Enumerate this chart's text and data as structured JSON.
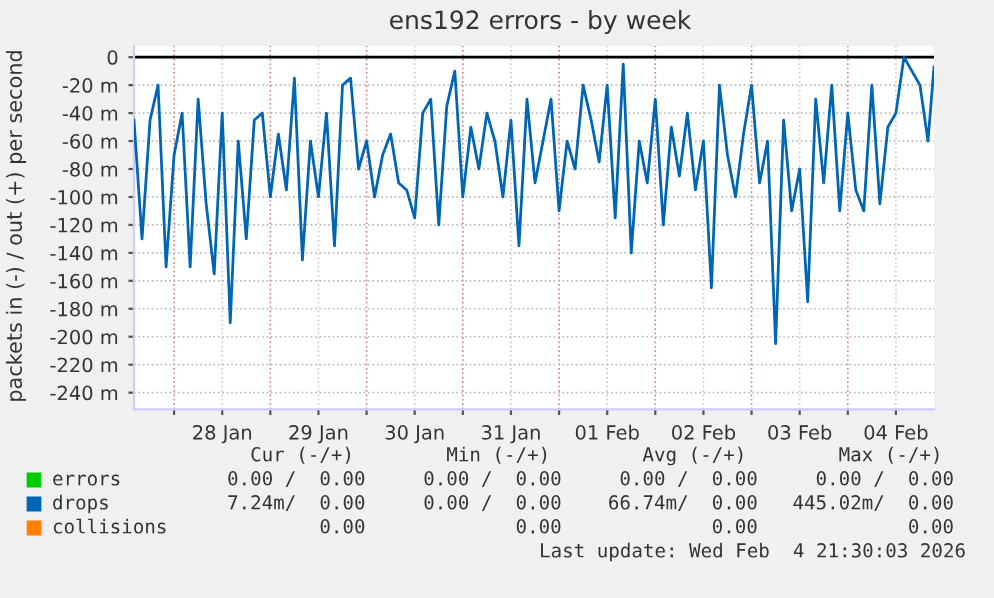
{
  "chart_data": {
    "type": "line",
    "title": "ens192 errors - by week",
    "ylabel": "packets in (-) / out (+) per second",
    "xlim": [
      "2026-01-27T14:00",
      "2026-02-04T21:30"
    ],
    "ylim": [
      -252,
      8
    ],
    "xticks": [
      {
        "value": "2026-01-28",
        "label": null
      },
      {
        "value": "2026-01-28T12:00",
        "label": "28 Jan"
      },
      {
        "value": "2026-01-29",
        "label": null
      },
      {
        "value": "2026-01-29T12:00",
        "label": "29 Jan"
      },
      {
        "value": "2026-01-30",
        "label": null
      },
      {
        "value": "2026-01-30T12:00",
        "label": "30 Jan"
      },
      {
        "value": "2026-01-31",
        "label": null
      },
      {
        "value": "2026-01-31T12:00",
        "label": "31 Jan"
      },
      {
        "value": "2026-02-01",
        "label": null
      },
      {
        "value": "2026-02-01T12:00",
        "label": "01 Feb"
      },
      {
        "value": "2026-02-02",
        "label": null
      },
      {
        "value": "2026-02-02T12:00",
        "label": "02 Feb"
      },
      {
        "value": "2026-02-03",
        "label": null
      },
      {
        "value": "2026-02-03T12:00",
        "label": "03 Feb"
      },
      {
        "value": "2026-02-04",
        "label": null
      },
      {
        "value": "2026-02-04T12:00",
        "label": "04 Feb"
      }
    ],
    "yticks": [
      0,
      {
        "value": -20,
        "label": "-20 m"
      },
      {
        "value": -40,
        "label": "-40 m"
      },
      {
        "value": -60,
        "label": "-60 m"
      },
      {
        "value": -80,
        "label": "-80 m"
      },
      {
        "value": -100,
        "label": "-100 m"
      },
      {
        "value": -120,
        "label": "-120 m"
      },
      {
        "value": -140,
        "label": "-140 m"
      },
      {
        "value": -160,
        "label": "-160 m"
      },
      {
        "value": -180,
        "label": "-180 m"
      },
      {
        "value": -200,
        "label": "-200 m"
      },
      {
        "value": -220,
        "label": "-220 m"
      },
      {
        "value": -240,
        "label": "-240 m"
      }
    ],
    "grid": true,
    "legend": "bottom left",
    "marker": "none",
    "line_style": "solid",
    "series": [
      {
        "name": "errors",
        "color": "#00cc00"
      },
      {
        "name": "drops",
        "color": "#0066b3",
        "x": [
          "2026-01-27T14:00",
          "2026-01-27T16:00",
          "2026-01-27T18:00",
          "2026-01-27T20:00",
          "2026-01-27T22:00",
          "2026-01-28T00:00",
          "2026-01-28T02:00",
          "2026-01-28T04:00",
          "2026-01-28T06:00",
          "2026-01-28T08:00",
          "2026-01-28T10:00",
          "2026-01-28T12:00",
          "2026-01-28T14:00",
          "2026-01-28T16:00",
          "2026-01-28T18:00",
          "2026-01-28T20:00",
          "2026-01-28T22:00",
          "2026-01-29T00:00",
          "2026-01-29T02:00",
          "2026-01-29T04:00",
          "2026-01-29T06:00",
          "2026-01-29T08:00",
          "2026-01-29T10:00",
          "2026-01-29T12:00",
          "2026-01-29T14:00",
          "2026-01-29T16:00",
          "2026-01-29T18:00",
          "2026-01-29T20:00",
          "2026-01-29T22:00",
          "2026-01-30T00:00",
          "2026-01-30T02:00",
          "2026-01-30T04:00",
          "2026-01-30T06:00",
          "2026-01-30T08:00",
          "2026-01-30T10:00",
          "2026-01-30T12:00",
          "2026-01-30T14:00",
          "2026-01-30T16:00",
          "2026-01-30T18:00",
          "2026-01-30T20:00",
          "2026-01-30T22:00",
          "2026-01-31T00:00",
          "2026-01-31T02:00",
          "2026-01-31T04:00",
          "2026-01-31T06:00",
          "2026-01-31T08:00",
          "2026-01-31T10:00",
          "2026-01-31T12:00",
          "2026-01-31T14:00",
          "2026-01-31T16:00",
          "2026-01-31T18:00",
          "2026-01-31T20:00",
          "2026-01-31T22:00",
          "2026-02-01T00:00",
          "2026-02-01T02:00",
          "2026-02-01T04:00",
          "2026-02-01T06:00",
          "2026-02-01T08:00",
          "2026-02-01T10:00",
          "2026-02-01T12:00",
          "2026-02-01T14:00",
          "2026-02-01T16:00",
          "2026-02-01T18:00",
          "2026-02-01T20:00",
          "2026-02-01T22:00",
          "2026-02-02T00:00",
          "2026-02-02T02:00",
          "2026-02-02T04:00",
          "2026-02-02T06:00",
          "2026-02-02T08:00",
          "2026-02-02T10:00",
          "2026-02-02T12:00",
          "2026-02-02T14:00",
          "2026-02-02T16:00",
          "2026-02-02T18:00",
          "2026-02-02T20:00",
          "2026-02-02T22:00",
          "2026-02-03T00:00",
          "2026-02-03T02:00",
          "2026-02-03T04:00",
          "2026-02-03T06:00",
          "2026-02-03T08:00",
          "2026-02-03T10:00",
          "2026-02-03T12:00",
          "2026-02-03T14:00",
          "2026-02-03T16:00",
          "2026-02-03T18:00",
          "2026-02-03T20:00",
          "2026-02-03T22:00",
          "2026-02-04T00:00",
          "2026-02-04T02:00",
          "2026-02-04T04:00",
          "2026-02-04T06:00",
          "2026-02-04T08:00",
          "2026-02-04T10:00",
          "2026-02-04T12:00",
          "2026-02-04T14:00",
          "2026-02-04T16:00",
          "2026-02-04T18:00",
          "2026-02-04T20:00",
          "2026-02-04T21:30"
        ],
        "values": [
          -45,
          -130,
          -45,
          -20,
          -150,
          -70,
          -40,
          -150,
          -30,
          -105,
          -155,
          -40,
          -190,
          -60,
          -130,
          -45,
          -40,
          -100,
          -55,
          -95,
          -15,
          -145,
          -60,
          -100,
          -40,
          -135,
          -20,
          -15,
          -80,
          -60,
          -100,
          -70,
          -55,
          -90,
          -95,
          -115,
          -40,
          -30,
          -120,
          -35,
          -10,
          -100,
          -50,
          -80,
          -40,
          -60,
          -100,
          -45,
          -135,
          -30,
          -90,
          -60,
          -30,
          -110,
          -60,
          -80,
          -20,
          -45,
          -75,
          -20,
          -115,
          -5,
          -140,
          -60,
          -90,
          -30,
          -120,
          -50,
          -85,
          -40,
          -95,
          -60,
          -165,
          -20,
          -70,
          -100,
          -55,
          -20,
          -90,
          -60,
          -205,
          -45,
          -110,
          -80,
          -175,
          -30,
          -90,
          -20,
          -110,
          -40,
          -95,
          -110,
          -20,
          -105,
          -50,
          -40,
          0,
          -10,
          -20,
          -60,
          -7
        ]
      },
      {
        "name": "collisions",
        "color": "#ff7f00"
      }
    ],
    "ref_lines": [
      {
        "axis": "y",
        "value": 0,
        "color": "#000000"
      }
    ],
    "annotations": [
      "  Cur (-/+)        Min (-/+)        Avg (-/+)        Max (-/+) ",
      "0.00 /  0.00     0.00 /  0.00     0.00 /  0.00     0.00 /  0.00",
      "7.24m/  0.00     0.00 /  0.00    66.74m/  0.00   445.02m/  0.00",
      "        0.00             0.00             0.00             0.00",
      "Last update: Wed Feb  4 21:30:03 2026"
    ]
  }
}
